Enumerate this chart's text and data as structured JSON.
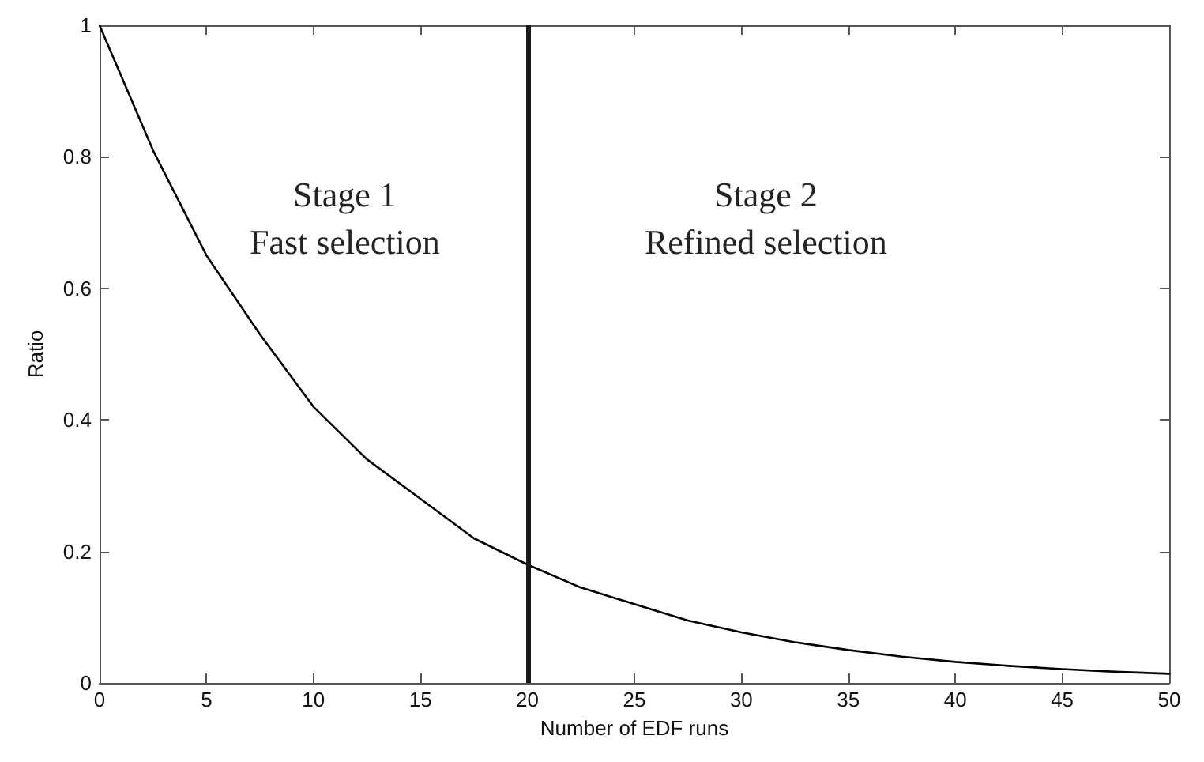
{
  "chart_data": {
    "type": "line",
    "xlabel": "Number of EDF runs",
    "ylabel": "Ratio",
    "x": [
      0,
      2.5,
      5,
      7.5,
      10,
      12.5,
      15,
      17.5,
      20,
      22.5,
      25,
      27.5,
      30,
      32.5,
      35,
      37.5,
      40,
      42.5,
      45,
      47.5,
      50
    ],
    "series": [
      {
        "color": "#000000",
        "values": [
          1.0,
          0.81,
          0.65,
          0.53,
          0.42,
          0.34,
          0.28,
          0.22,
          0.18,
          0.145,
          0.12,
          0.095,
          0.077,
          0.062,
          0.05,
          0.04,
          0.032,
          0.026,
          0.021,
          0.017,
          0.014
        ]
      }
    ],
    "xlim": [
      0,
      50
    ],
    "xticks": [
      0,
      5,
      10,
      15,
      20,
      25,
      30,
      35,
      40,
      45,
      50
    ],
    "ylim": [
      0,
      1
    ],
    "yticks": [
      0,
      0.2,
      0.4,
      0.6,
      0.8,
      1
    ],
    "ref_lines": [
      {
        "axis": "x",
        "value": 20,
        "color": "#1a1a1a"
      }
    ],
    "annotations": [
      "Stage 1\nFast selection",
      "Stage 2\nRefined selection"
    ],
    "grid": false,
    "marker": "none",
    "line_style": "solid"
  }
}
